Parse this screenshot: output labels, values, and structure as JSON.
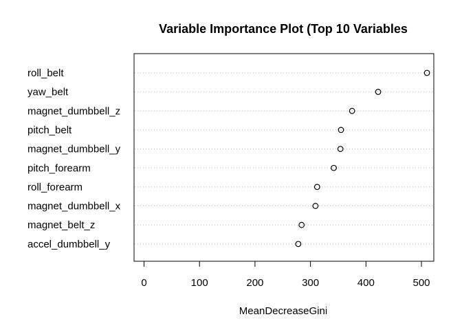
{
  "chart_data": {
    "type": "scatter",
    "title": "Variable Importance Plot (Top 10 Variables",
    "xlabel": "MeanDecreaseGini",
    "ylabel": "",
    "xlim": [
      -15,
      525
    ],
    "x_ticks": [
      0,
      100,
      200,
      300,
      400,
      500
    ],
    "x_tick_labels": [
      "0",
      "100",
      "200",
      "300",
      "400",
      "500"
    ],
    "grid": "dotted horizontal guide lines per variable",
    "categories": [
      "roll_belt",
      "yaw_belt",
      "magnet_dumbbell_z",
      "pitch_belt",
      "magnet_dumbbell_y",
      "pitch_forearm",
      "roll_forearm",
      "magnet_dumbbell_x",
      "magnet_belt_z",
      "accel_dumbbell_y"
    ],
    "values": [
      510,
      422,
      375,
      355,
      354,
      342,
      312,
      309,
      284,
      278
    ]
  }
}
